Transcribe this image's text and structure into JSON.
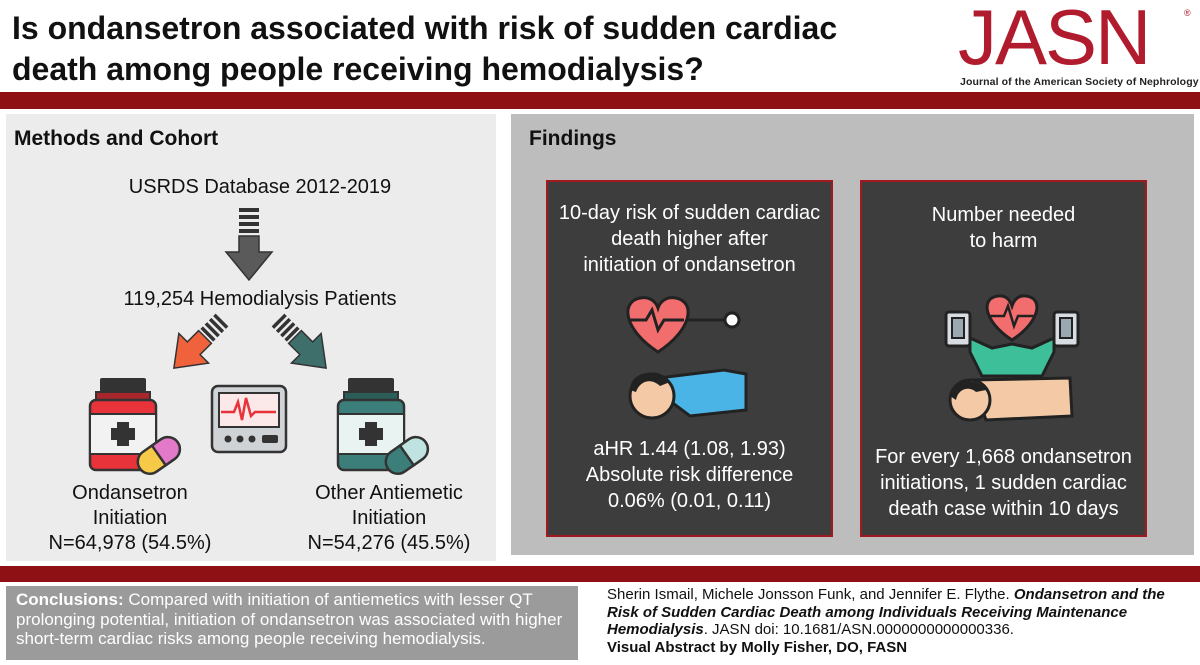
{
  "header": {
    "title_line1": "Is ondansetron associated with risk of sudden cardiac",
    "title_line2": "death among people receiving hemodialysis?",
    "logo_text": "JASN",
    "logo_mark": "®",
    "logo_subtitle": "Journal of the American Society of Nephrology"
  },
  "methods": {
    "title": "Methods and Cohort",
    "database": "USRDS Database 2012-2019",
    "patients": "119,254 Hemodialysis Patients",
    "group_a": {
      "name_line1": "Ondansetron",
      "name_line2": "Initiation",
      "n": "N=64,978 (54.5%)"
    },
    "group_b": {
      "name_line1": "Other Antiemetic",
      "name_line2": "Initiation",
      "n": "N=54,276 (45.5%)"
    }
  },
  "findings": {
    "title": "Findings",
    "card1": {
      "heading": [
        "10-day risk of sudden cardiac",
        "death higher after",
        "initiation of ondansetron"
      ],
      "result": [
        "aHR 1.44 (1.08, 1.93)",
        "Absolute risk difference",
        "0.06% (0.01, 0.11)"
      ]
    },
    "card2": {
      "heading": [
        "Number needed",
        "to harm"
      ],
      "result": [
        "For every 1,668 ondansetron",
        "initiations, 1 sudden cardiac",
        "death case within 10 days"
      ]
    }
  },
  "footer": {
    "conclusions_label": "Conclusions:",
    "conclusions_text": "Compared with initiation of antiemetics with lesser QT prolonging potential, initiation of ondansetron was associated with higher short-term cardiac risks among people receiving hemodialysis.",
    "citation_authors": "Sherin Ismail, Michele Jonsson Funk, and Jennifer E. Flythe.",
    "citation_title": "Ondansetron and the Risk of Sudden Cardiac Death among Individuals Receiving Maintenance Hemodialysis",
    "citation_journal": ". JASN doi: 10.1681/ASN.0000000000000336.",
    "visual_abstract_by": "Visual Abstract by Molly Fisher, DO, FASN"
  },
  "colors": {
    "brand_red": "#8e1015",
    "card_background": "#3d3d3d",
    "arrow_orange": "#f0623b",
    "arrow_teal": "#3f6f6b",
    "bottle_red": "#e8333a",
    "bottle_teal": "#3c7f7a"
  },
  "icons": [
    "down-arrow-icon",
    "diagonal-arrow-icon",
    "medicine-bottle-icon",
    "pill-capsule-icon",
    "heart-monitor-icon",
    "patient-heart-icon",
    "cpr-doctor-icon"
  ]
}
